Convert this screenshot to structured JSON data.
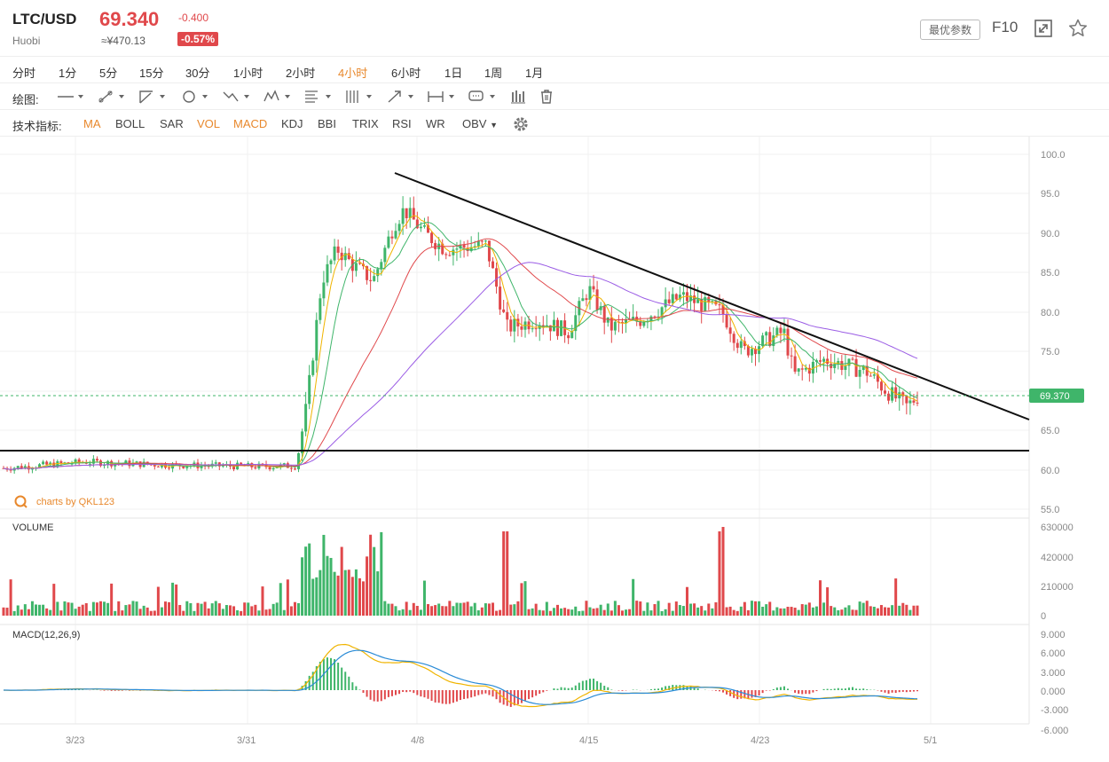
{
  "header": {
    "pair": "LTC/USD",
    "exchange": "Huobi",
    "price": "69.340",
    "price_cny": "≈¥470.13",
    "change": "-0.400",
    "change_pct": "-0.57%",
    "params_button": "最优参数",
    "f10": "F10",
    "colors": {
      "down": "#e0484b",
      "up": "#3fb56a",
      "accent": "#e8882c"
    }
  },
  "timeframes": {
    "items": [
      "分时",
      "1分",
      "5分",
      "15分",
      "30分",
      "1小时",
      "2小时",
      "4小时",
      "6小时",
      "1日",
      "1周",
      "1月"
    ],
    "active": "4小时"
  },
  "drawing": {
    "label": "绘图:",
    "tools": [
      "line-tool-icon",
      "segment-tool-icon",
      "ray-tool-icon",
      "circle-tool-icon",
      "zigzag-tool-icon",
      "pattern-tool-icon",
      "fibonacci-tool-icon",
      "parallel-tool-icon",
      "arrow-tool-icon",
      "range-tool-icon",
      "comment-tool-icon",
      "bars-tool-icon",
      "trash-icon"
    ]
  },
  "indicators": {
    "label": "技术指标:",
    "items": [
      "MA",
      "BOLL",
      "SAR",
      "VOL",
      "MACD",
      "KDJ",
      "BBI",
      "TRIX",
      "RSI",
      "WR",
      "OBV"
    ],
    "active": [
      "MA",
      "VOL",
      "MACD"
    ]
  },
  "chart_data": {
    "type": "candlestick",
    "credit": "charts by QKL123",
    "current_price_label": "69.370",
    "price_axis": [
      "100.0",
      "95.0",
      "90.0",
      "85.0",
      "80.0",
      "75.0",
      "65.0",
      "60.0",
      "55.0"
    ],
    "ylim": [
      55,
      100
    ],
    "x_ticks": [
      "3/23",
      "3/31",
      "4/8",
      "4/15",
      "4/23",
      "5/1"
    ],
    "volume_title": "VOLUME",
    "volume_axis": [
      "630000",
      "420000",
      "210000",
      "0"
    ],
    "macd_title": "MACD(12,26,9)",
    "macd_axis": [
      "9.000",
      "6.000",
      "3.000",
      "0.000",
      "-3.000",
      "-6.000"
    ],
    "price_path": [
      [
        0,
        60.2
      ],
      [
        0.08,
        61.0
      ],
      [
        0.16,
        60.6
      ],
      [
        0.25,
        60.4
      ],
      [
        0.285,
        60.5
      ],
      [
        0.295,
        68
      ],
      [
        0.31,
        84
      ],
      [
        0.325,
        88
      ],
      [
        0.34,
        86
      ],
      [
        0.36,
        84
      ],
      [
        0.38,
        91
      ],
      [
        0.39,
        93
      ],
      [
        0.41,
        90
      ],
      [
        0.43,
        88
      ],
      [
        0.47,
        88.5
      ],
      [
        0.49,
        78
      ],
      [
        0.52,
        79
      ],
      [
        0.55,
        77.5
      ],
      [
        0.57,
        83
      ],
      [
        0.59,
        78
      ],
      [
        0.62,
        79
      ],
      [
        0.66,
        82
      ],
      [
        0.7,
        80
      ],
      [
        0.72,
        75
      ],
      [
        0.76,
        77.5
      ],
      [
        0.77,
        72
      ],
      [
        0.8,
        74
      ],
      [
        0.84,
        72.5
      ],
      [
        0.86,
        70
      ],
      [
        0.88,
        68
      ],
      [
        0.89,
        69.3
      ]
    ]
  }
}
